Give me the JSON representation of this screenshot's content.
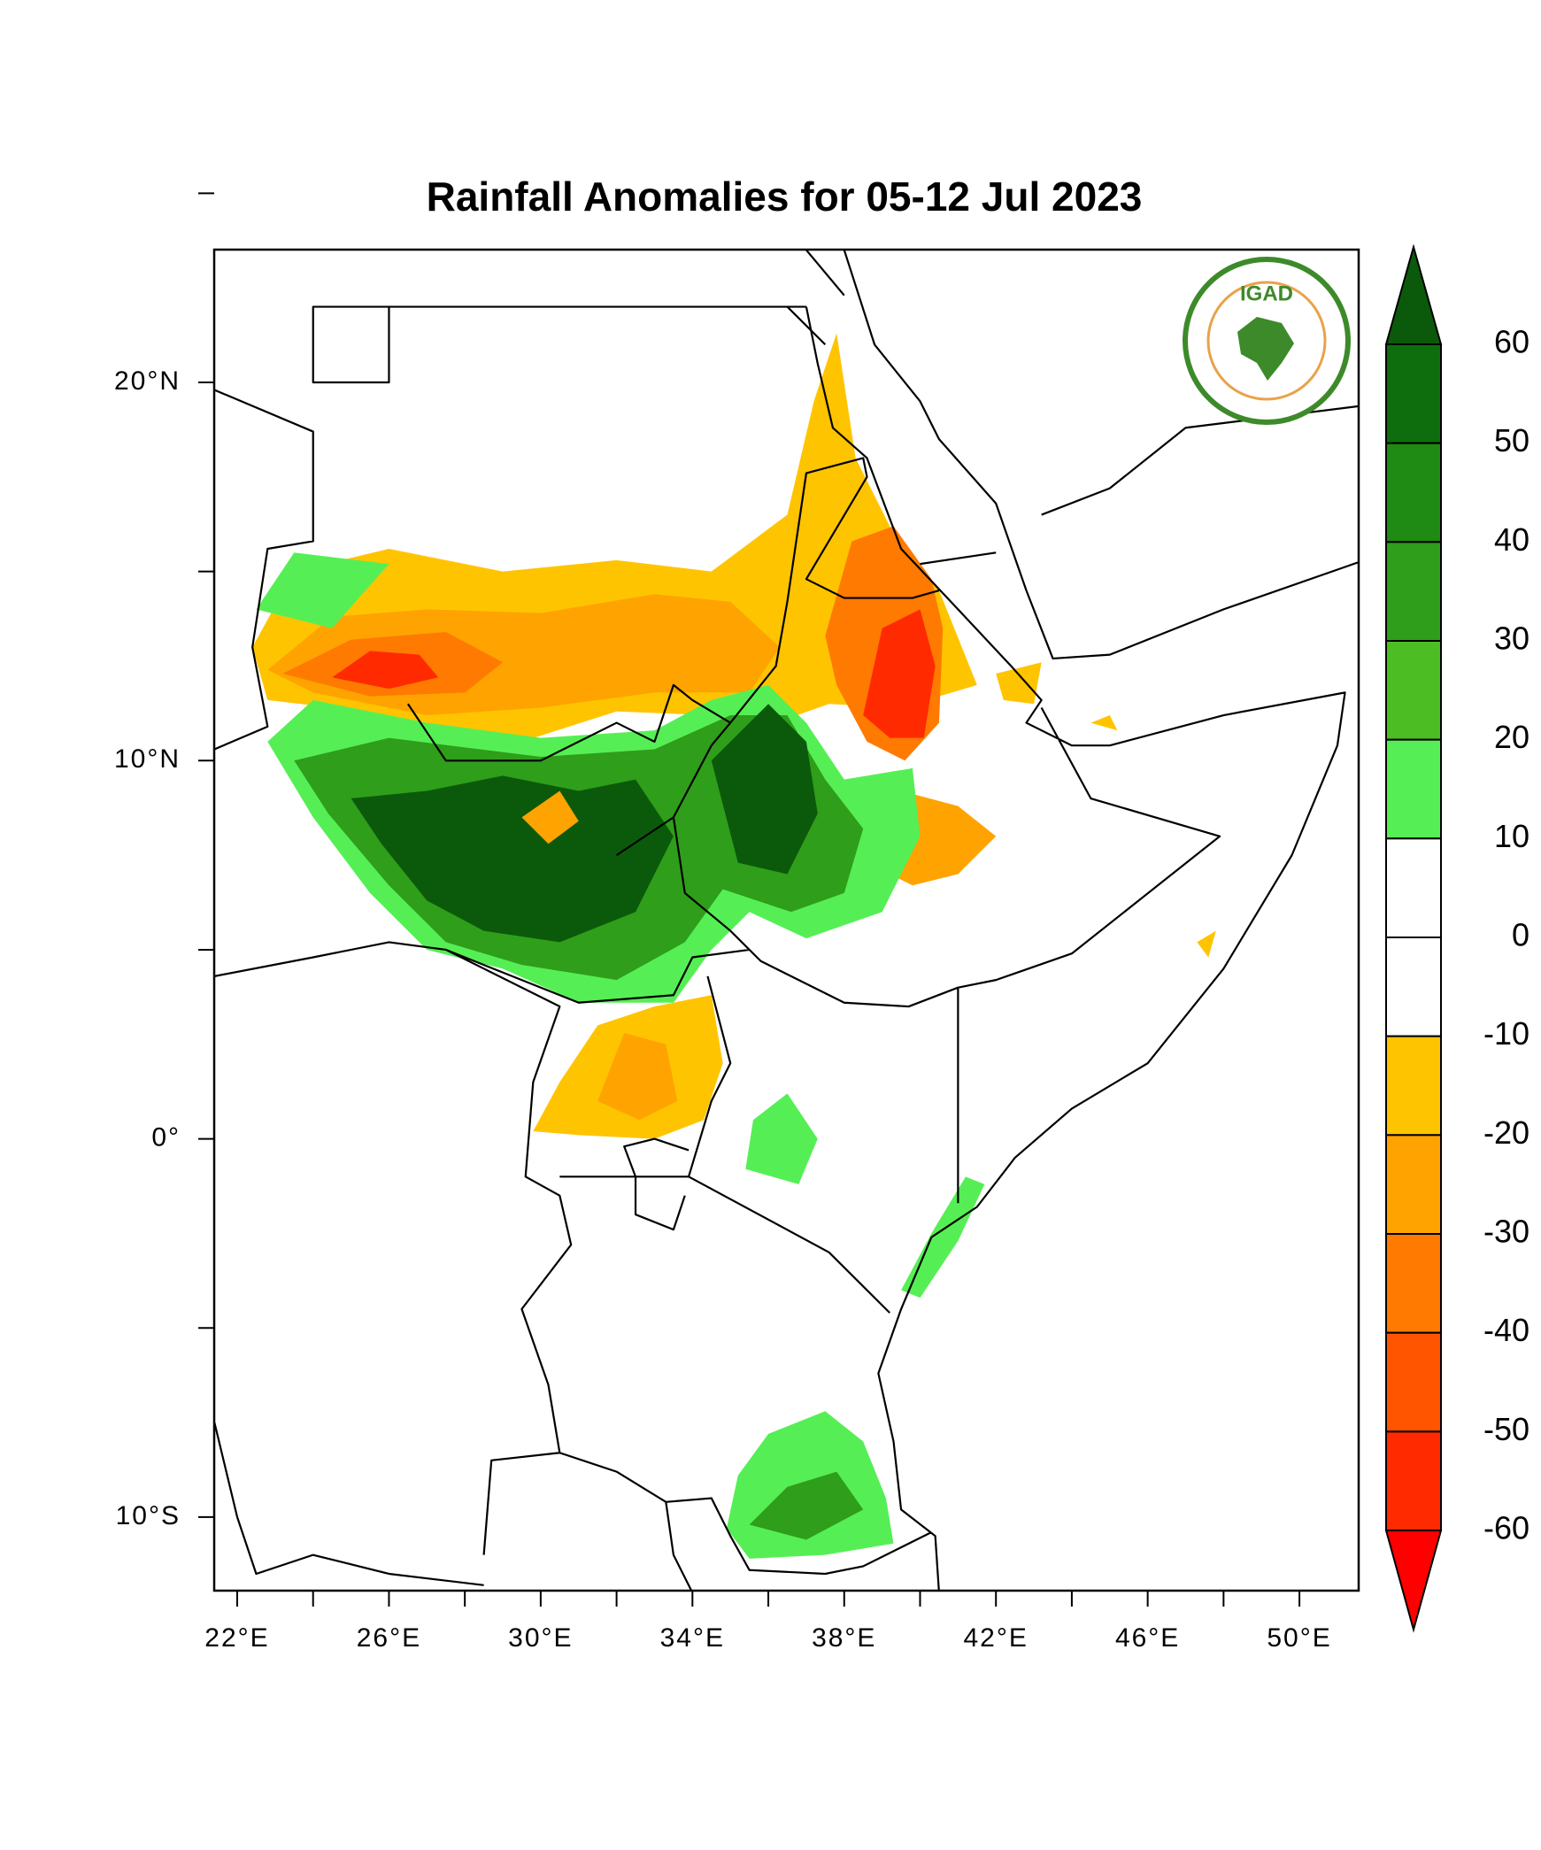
{
  "title": "Rainfall Anomalies for 05-12 Jul 2023",
  "logo": "IGAD",
  "map": {
    "lon_ticks": [
      "22°E",
      "26°E",
      "30°E",
      "34°E",
      "38°E",
      "42°E",
      "46°E",
      "50°E"
    ],
    "lat_ticks": [
      "20°N",
      "10°N",
      "0°",
      "10°S"
    ]
  },
  "colorbar": {
    "levels": [
      60,
      50,
      40,
      30,
      20,
      10,
      0,
      -10,
      -20,
      -30,
      -40,
      -50,
      -60
    ],
    "colors": [
      "#0b5a0b",
      "#0e6e0e",
      "#1f8a14",
      "#2f9e1a",
      "#4cbe23",
      "#55ef55",
      "#ffffff",
      "#ffffff",
      "#ffc400",
      "#ffa300",
      "#ff7a00",
      "#ff5500",
      "#ff2a00",
      "#ff0000"
    ]
  }
}
